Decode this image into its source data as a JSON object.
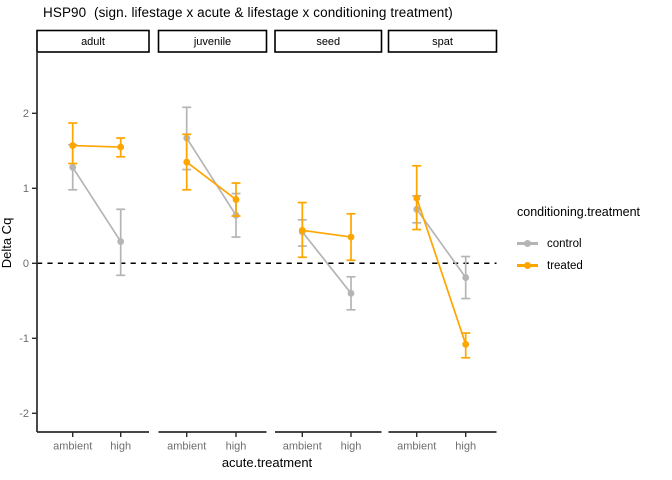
{
  "title": "HSP90  (sign. lifestage x acute & lifestage x conditioning treatment)",
  "chart_data": {
    "type": "line",
    "title": "HSP90  (sign. lifestage x acute & lifestage x conditioning treatment)",
    "xlabel": "acute.treatment",
    "ylabel": "Delta Cq",
    "ylim": [
      -2.25,
      2.8
    ],
    "yticks": [
      2,
      1,
      0,
      -1,
      -2
    ],
    "grid": false,
    "x_categories": [
      "ambient",
      "high"
    ],
    "hline": {
      "y": 0,
      "style": "dashed",
      "color": "#000000"
    },
    "colors": {
      "control": "#b5b5b5",
      "treated": "#ffa500"
    },
    "legend": {
      "title": "conditioning.treatment",
      "position": "right",
      "entries": [
        {
          "label": "control",
          "color": "#b5b5b5"
        },
        {
          "label": "treated",
          "color": "#ffa500"
        }
      ]
    },
    "facets": [
      {
        "label": "adult",
        "series": [
          {
            "name": "control",
            "values": [
              1.28,
              0.29
            ],
            "err_low": [
              0.98,
              -0.16
            ],
            "err_high": [
              1.58,
              0.72
            ]
          },
          {
            "name": "treated",
            "values": [
              1.57,
              1.55
            ],
            "err_low": [
              1.33,
              1.42
            ],
            "err_high": [
              1.87,
              1.67
            ]
          }
        ]
      },
      {
        "label": "juvenile",
        "series": [
          {
            "name": "control",
            "values": [
              1.67,
              0.64
            ],
            "err_low": [
              1.25,
              0.35
            ],
            "err_high": [
              2.08,
              0.93
            ]
          },
          {
            "name": "treated",
            "values": [
              1.35,
              0.85
            ],
            "err_low": [
              0.98,
              0.63
            ],
            "err_high": [
              1.72,
              1.07
            ]
          }
        ]
      },
      {
        "label": "seed",
        "series": [
          {
            "name": "control",
            "values": [
              0.42,
              -0.4
            ],
            "err_low": [
              0.23,
              -0.62
            ],
            "err_high": [
              0.58,
              -0.18
            ]
          },
          {
            "name": "treated",
            "values": [
              0.44,
              0.35
            ],
            "err_low": [
              0.08,
              0.04
            ],
            "err_high": [
              0.81,
              0.66
            ]
          }
        ]
      },
      {
        "label": "spat",
        "series": [
          {
            "name": "control",
            "values": [
              0.72,
              -0.19
            ],
            "err_low": [
              0.54,
              -0.47
            ],
            "err_high": [
              0.9,
              0.09
            ]
          },
          {
            "name": "treated",
            "values": [
              0.87,
              -1.08
            ],
            "err_low": [
              0.45,
              -1.26
            ],
            "err_high": [
              1.3,
              -0.93
            ]
          }
        ]
      }
    ]
  }
}
